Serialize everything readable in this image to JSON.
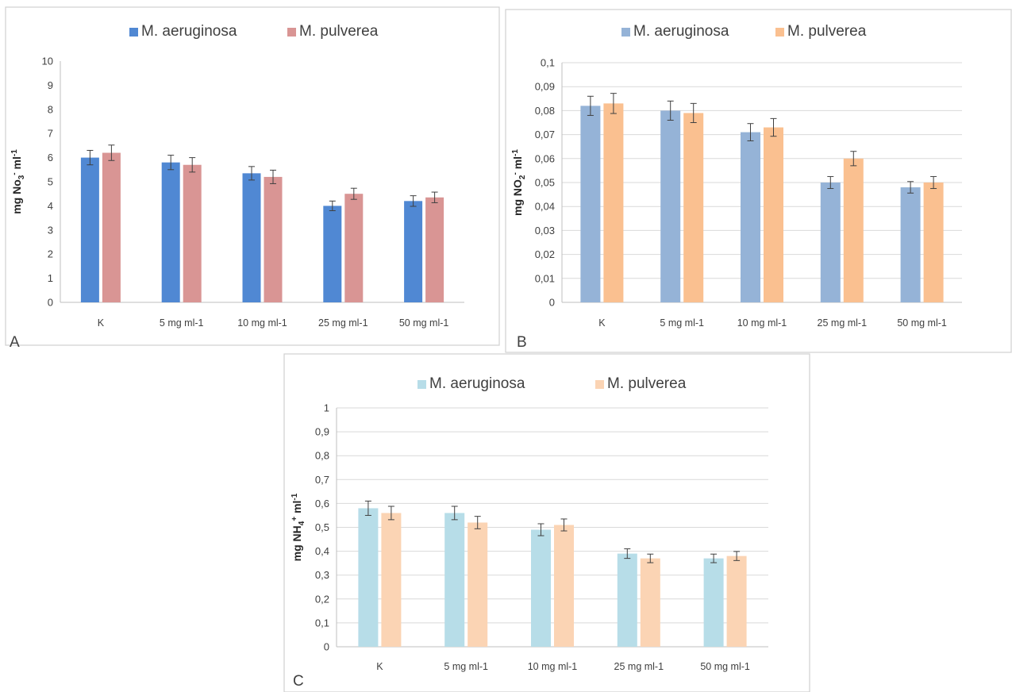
{
  "chart_data": [
    {
      "type": "bar",
      "panel_label": "A",
      "categories": [
        "K",
        "5 mg ml-1",
        "10 mg ml-1",
        "25 mg ml-1",
        "50 mg ml-1"
      ],
      "series": [
        {
          "name": "M. aeruginosa",
          "values": [
            6.0,
            5.8,
            5.35,
            4.0,
            4.2
          ],
          "errors": [
            0.3,
            0.3,
            0.28,
            0.2,
            0.22
          ],
          "color": "#5088d3"
        },
        {
          "name": "M. pulverea",
          "values": [
            6.2,
            5.7,
            5.2,
            4.5,
            4.35
          ],
          "errors": [
            0.32,
            0.3,
            0.28,
            0.23,
            0.22
          ],
          "color": "#d99594"
        }
      ],
      "ylabel": {
        "base": "mg No",
        "sub": "3",
        "sup": "-",
        "tail": " ml",
        "tail_sup": "-1"
      },
      "ylim": [
        0,
        10
      ],
      "yticks": [
        "0",
        "1",
        "2",
        "3",
        "4",
        "5",
        "6",
        "7",
        "8",
        "9",
        "10"
      ],
      "grid": false,
      "legend": "top"
    },
    {
      "type": "bar",
      "panel_label": "B",
      "categories": [
        "K",
        "5 mg ml-1",
        "10 mg ml-1",
        "25 mg ml-1",
        "50 mg ml-1"
      ],
      "series": [
        {
          "name": "M. aeruginosa",
          "values": [
            0.082,
            0.08,
            0.071,
            0.05,
            0.048
          ],
          "errors": [
            0.004,
            0.004,
            0.0036,
            0.0025,
            0.0024
          ],
          "color": "#95b3d7"
        },
        {
          "name": "M. pulverea",
          "values": [
            0.083,
            0.079,
            0.073,
            0.06,
            0.05
          ],
          "errors": [
            0.0042,
            0.004,
            0.0037,
            0.003,
            0.0025
          ],
          "color": "#fac090"
        }
      ],
      "ylabel": {
        "base": "mg NO",
        "sub": "2",
        "sup": "-",
        "tail": " ml",
        "tail_sup": "-1"
      },
      "ylim": [
        0,
        0.1
      ],
      "yticks": [
        "0",
        "0,01",
        "0,02",
        "0,03",
        "0,04",
        "0,05",
        "0,06",
        "0,07",
        "0,08",
        "0,09",
        "0,1"
      ],
      "grid": true,
      "legend": "top"
    },
    {
      "type": "bar",
      "panel_label": "C",
      "categories": [
        "K",
        "5 mg ml-1",
        "10 mg ml-1",
        "25 mg ml-1",
        "50 mg ml-1"
      ],
      "series": [
        {
          "name": "M. aeruginosa",
          "values": [
            0.58,
            0.56,
            0.49,
            0.39,
            0.37
          ],
          "errors": [
            0.03,
            0.028,
            0.025,
            0.02,
            0.018
          ],
          "color": "#b7dde8"
        },
        {
          "name": "M. pulverea",
          "values": [
            0.56,
            0.52,
            0.51,
            0.37,
            0.38
          ],
          "errors": [
            0.028,
            0.026,
            0.025,
            0.018,
            0.019
          ],
          "color": "#fbd4b4"
        }
      ],
      "ylabel": {
        "base": "mg NH",
        "sub": "4",
        "sup": "+",
        "tail": " ml",
        "tail_sup": "-1"
      },
      "ylim": [
        0,
        1
      ],
      "yticks": [
        "0",
        "0,1",
        "0,2",
        "0,3",
        "0,4",
        "0,5",
        "0,6",
        "0,7",
        "0,8",
        "0,9",
        "1"
      ],
      "grid": true,
      "legend": "top"
    }
  ]
}
